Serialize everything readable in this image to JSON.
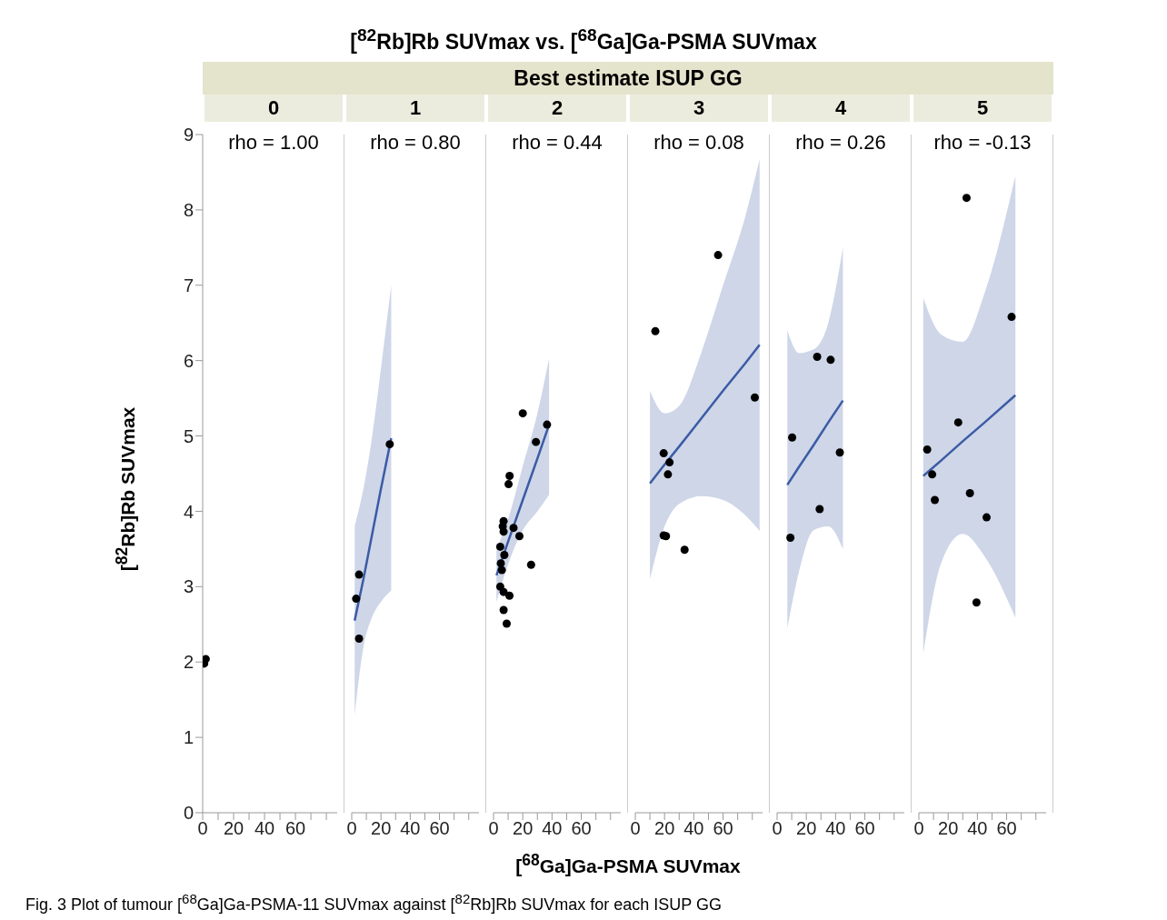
{
  "chart_data": [
    {
      "type": "scatter",
      "title": "0",
      "annotations": [
        "rho = 1.00",
        "[$^{82}$Rb]Rb SUVmax vs. [$^{68}$Ga]Ga-PSMA SUVmax",
        "Best estimate ISUP GG",
        "Fig. 3  Plot of tumour [$^{68}$Ga]Ga-PSMA-11 SUVmax against [$^{82}$Rb]Rb SUVmax for each ISUP GG"
      ],
      "ylabel": "[$^{82}$Rb]Rb SUVmax",
      "xlim": [
        0,
        87
      ],
      "xticks": [
        0,
        {
          "value": 10,
          "label": null
        },
        20,
        {
          "value": 30,
          "label": null
        },
        40,
        {
          "value": 50,
          "label": null
        },
        60,
        {
          "value": 70,
          "label": null
        },
        {
          "value": 80,
          "label": null
        }
      ],
      "ylim": [
        0,
        9
      ],
      "yticks": [
        0,
        1,
        2,
        3,
        4,
        5,
        6,
        7,
        8,
        9
      ],
      "marker": "circle",
      "series": [
        {
          "color": "#000000",
          "x": [
            1,
            2
          ],
          "values": [
            1.98,
            2.04
          ]
        }
      ]
    },
    {
      "type": "scatter",
      "title": "1",
      "annotations": [
        "rho = 0.80"
      ],
      "tick_labels": "x",
      "xlim": [
        0,
        87
      ],
      "xticks": [
        0,
        {
          "value": 10,
          "label": null
        },
        20,
        {
          "value": 30,
          "label": null
        },
        40,
        {
          "value": 50,
          "label": null
        },
        60,
        {
          "value": 70,
          "label": null
        },
        {
          "value": 80,
          "label": null
        }
      ],
      "ylim": [
        0,
        9
      ],
      "yticks": [
        0,
        1,
        2,
        3,
        4,
        5,
        6,
        7,
        8,
        9
      ],
      "marker": "circle",
      "series": [
        {
          "color": "#000000",
          "x": [
            26,
            5,
            3,
            5
          ],
          "values": [
            4.89,
            3.16,
            2.84,
            2.31
          ]
        },
        {
          "type": "line",
          "marker": "none",
          "color": "#3b5ba5",
          "x": [
            2,
            8,
            14,
            20,
            27
          ],
          "values": [
            2.55,
            3.1,
            3.7,
            4.3,
            4.97
          ],
          "lower": [
            1.3,
            2.2,
            2.6,
            2.8,
            2.95
          ],
          "upper": [
            3.8,
            4.3,
            5.0,
            5.9,
            7.0
          ]
        }
      ]
    },
    {
      "type": "scatter",
      "title": "2",
      "annotations": [
        "rho = 0.44"
      ],
      "xlabel": "[$^{68}$Ga]Ga-PSMA SUVmax",
      "tick_labels": "x",
      "xlim": [
        0,
        87
      ],
      "xticks": [
        0,
        {
          "value": 10,
          "label": null
        },
        20,
        {
          "value": 30,
          "label": null
        },
        40,
        {
          "value": 50,
          "label": null
        },
        60,
        {
          "value": 70,
          "label": null
        },
        {
          "value": 80,
          "label": null
        }
      ],
      "ylim": [
        0,
        9
      ],
      "yticks": [
        0,
        1,
        2,
        3,
        4,
        5,
        6,
        7,
        8,
        9
      ],
      "marker": "circle",
      "series": [
        {
          "color": "#000000",
          "x": [
            20,
            36.6,
            29,
            11,
            10.3,
            6.9,
            6.3,
            6.9,
            13.7,
            17.7,
            4.6,
            7.4,
            5,
            25.7,
            5.7,
            4.6,
            6.9,
            10.9,
            6.9,
            9
          ],
          "values": [
            5.3,
            5.15,
            4.92,
            4.47,
            4.36,
            3.87,
            3.8,
            3.73,
            3.78,
            3.67,
            3.53,
            3.42,
            3.31,
            3.29,
            3.22,
            3.0,
            2.93,
            2.88,
            2.69,
            2.51
          ]
        },
        {
          "type": "line",
          "marker": "none",
          "color": "#3b5ba5",
          "x": [
            2,
            10,
            20,
            30,
            38
          ],
          "values": [
            3.15,
            3.6,
            4.15,
            4.7,
            5.15
          ],
          "lower": [
            2.8,
            3.3,
            3.75,
            4.0,
            4.22
          ],
          "upper": [
            3.5,
            3.9,
            4.6,
            5.3,
            6.03
          ]
        }
      ]
    },
    {
      "type": "scatter",
      "title": "3",
      "annotations": [
        "rho = 0.08"
      ],
      "tick_labels": "x",
      "xlim": [
        0,
        87
      ],
      "xticks": [
        0,
        {
          "value": 10,
          "label": null
        },
        20,
        {
          "value": 30,
          "label": null
        },
        40,
        {
          "value": 50,
          "label": null
        },
        60,
        {
          "value": 70,
          "label": null
        },
        {
          "value": 80,
          "label": null
        }
      ],
      "ylim": [
        0,
        9
      ],
      "yticks": [
        0,
        1,
        2,
        3,
        4,
        5,
        6,
        7,
        8,
        9
      ],
      "marker": "circle",
      "series": [
        {
          "color": "#000000",
          "x": [
            13.7,
            56.6,
            81.7,
            19.4,
            23.4,
            22.3,
            19.4,
            21,
            33.7
          ],
          "values": [
            6.39,
            7.4,
            5.51,
            4.77,
            4.65,
            4.49,
            3.68,
            3.67,
            3.49
          ]
        },
        {
          "type": "line",
          "marker": "none",
          "color": "#3b5ba5",
          "x": [
            10,
            20,
            30,
            45,
            60,
            75,
            85
          ],
          "values": [
            4.37,
            4.62,
            4.86,
            5.23,
            5.6,
            5.96,
            6.21
          ],
          "lower": [
            3.1,
            3.8,
            4.1,
            4.2,
            4.15,
            3.95,
            3.74
          ],
          "upper": [
            5.6,
            5.3,
            5.4,
            6.1,
            7.0,
            7.9,
            8.67
          ]
        }
      ]
    },
    {
      "type": "scatter",
      "title": "4",
      "annotations": [
        "rho = 0.26"
      ],
      "tick_labels": "x",
      "xlim": [
        0,
        87
      ],
      "xticks": [
        0,
        {
          "value": 10,
          "label": null
        },
        20,
        {
          "value": 30,
          "label": null
        },
        40,
        {
          "value": 50,
          "label": null
        },
        60,
        {
          "value": 70,
          "label": null
        },
        {
          "value": 80,
          "label": null
        }
      ],
      "ylim": [
        0,
        9
      ],
      "yticks": [
        0,
        1,
        2,
        3,
        4,
        5,
        6,
        7,
        8,
        9
      ],
      "marker": "circle",
      "series": [
        {
          "color": "#000000",
          "x": [
            27.4,
            36.6,
            10.3,
            42.9,
            29.1,
            9.1
          ],
          "values": [
            6.05,
            6.01,
            4.98,
            4.78,
            4.03,
            3.65
          ]
        },
        {
          "type": "line",
          "marker": "none",
          "color": "#3b5ba5",
          "x": [
            7,
            15,
            25,
            35,
            45
          ],
          "values": [
            4.35,
            4.59,
            4.88,
            5.18,
            5.47
          ],
          "lower": [
            2.45,
            3.2,
            3.75,
            3.8,
            3.5
          ],
          "upper": [
            6.4,
            6.1,
            6.15,
            6.5,
            7.5
          ]
        }
      ]
    },
    {
      "type": "scatter",
      "title": "5",
      "annotations": [
        "rho = -0.13"
      ],
      "tick_labels": "x",
      "xlim": [
        0,
        87
      ],
      "xticks": [
        0,
        {
          "value": 10,
          "label": null
        },
        20,
        {
          "value": 30,
          "label": null
        },
        40,
        {
          "value": 50,
          "label": null
        },
        60,
        {
          "value": 70,
          "label": null
        },
        {
          "value": 80,
          "label": null
        }
      ],
      "ylim": [
        0,
        9
      ],
      "yticks": [
        0,
        1,
        2,
        3,
        4,
        5,
        6,
        7,
        8,
        9
      ],
      "marker": "circle",
      "series": [
        {
          "color": "#000000",
          "x": [
            32.6,
            63.4,
            26.9,
            5.7,
            9.1,
            10.9,
            34.9,
            46.3,
            39.4
          ],
          "values": [
            8.16,
            6.58,
            5.18,
            4.82,
            4.49,
            4.15,
            4.24,
            3.92,
            2.79
          ]
        },
        {
          "type": "line",
          "marker": "none",
          "color": "#3b5ba5",
          "x": [
            3,
            15,
            30,
            45,
            66
          ],
          "values": [
            4.47,
            4.67,
            4.93,
            5.18,
            5.54
          ],
          "lower": [
            2.11,
            3.3,
            3.7,
            3.4,
            2.59
          ],
          "upper": [
            6.83,
            6.35,
            6.25,
            6.9,
            8.45
          ]
        }
      ]
    }
  ]
}
